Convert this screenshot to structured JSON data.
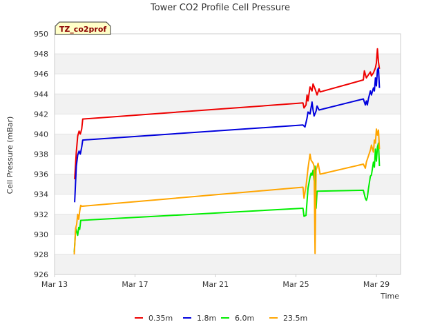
{
  "chart_data": {
    "type": "line",
    "title": "Tower CO2 Profile Cell Pressure",
    "badge": "TZ_co2prof",
    "xlabel": "Time",
    "ylabel": "Cell Pressure (mBar)",
    "x_unit": "day",
    "xlim": [
      13,
      30.2
    ],
    "ylim": [
      926,
      950
    ],
    "x_ticks": [
      {
        "value": 13,
        "label": "Mar 13"
      },
      {
        "value": 17,
        "label": "Mar 17"
      },
      {
        "value": 21,
        "label": "Mar 21"
      },
      {
        "value": 25,
        "label": "Mar 25"
      },
      {
        "value": 29,
        "label": "Mar 29"
      }
    ],
    "y_ticks": [
      926,
      928,
      930,
      932,
      934,
      936,
      938,
      940,
      942,
      944,
      946,
      948,
      950
    ],
    "grid": true,
    "banded_background": true,
    "legend_position": "bottom",
    "series": [
      {
        "name": "0.35m",
        "color": "#ee0000",
        "points": [
          [
            14.0,
            935.5
          ],
          [
            14.08,
            938.2
          ],
          [
            14.15,
            939.8
          ],
          [
            14.22,
            940.3
          ],
          [
            14.28,
            940.0
          ],
          [
            14.35,
            940.5
          ],
          [
            14.4,
            941.5
          ],
          [
            25.35,
            943.1
          ],
          [
            25.4,
            942.6
          ],
          [
            25.5,
            942.9
          ],
          [
            25.55,
            943.9
          ],
          [
            25.6,
            943.3
          ],
          [
            25.7,
            944.7
          ],
          [
            25.8,
            944.3
          ],
          [
            25.85,
            945.0
          ],
          [
            25.95,
            944.5
          ],
          [
            26.05,
            943.9
          ],
          [
            26.15,
            944.5
          ],
          [
            26.2,
            944.2
          ],
          [
            28.35,
            945.4
          ],
          [
            28.4,
            946.3
          ],
          [
            28.5,
            945.6
          ],
          [
            28.6,
            945.9
          ],
          [
            28.7,
            946.2
          ],
          [
            28.75,
            945.8
          ],
          [
            28.85,
            946.1
          ],
          [
            28.95,
            946.6
          ],
          [
            29.0,
            947.1
          ],
          [
            29.05,
            948.5
          ],
          [
            29.1,
            947.2
          ],
          [
            29.15,
            946.5
          ]
        ]
      },
      {
        "name": "1.8m",
        "color": "#0000dd",
        "points": [
          [
            14.0,
            933.2
          ],
          [
            14.08,
            936.8
          ],
          [
            14.15,
            937.9
          ],
          [
            14.22,
            938.3
          ],
          [
            14.28,
            938.0
          ],
          [
            14.35,
            938.7
          ],
          [
            14.4,
            939.4
          ],
          [
            25.35,
            940.9
          ],
          [
            25.45,
            940.7
          ],
          [
            25.55,
            941.6
          ],
          [
            25.6,
            942.2
          ],
          [
            25.7,
            942.0
          ],
          [
            25.8,
            943.2
          ],
          [
            25.85,
            942.4
          ],
          [
            25.9,
            941.8
          ],
          [
            26.0,
            942.3
          ],
          [
            26.05,
            942.8
          ],
          [
            26.15,
            942.4
          ],
          [
            28.35,
            943.5
          ],
          [
            28.45,
            942.9
          ],
          [
            28.5,
            943.3
          ],
          [
            28.55,
            942.9
          ],
          [
            28.6,
            943.5
          ],
          [
            28.7,
            944.3
          ],
          [
            28.75,
            943.9
          ],
          [
            28.85,
            944.6
          ],
          [
            28.9,
            944.3
          ],
          [
            28.95,
            945.6
          ],
          [
            29.0,
            944.8
          ],
          [
            29.05,
            946.4
          ],
          [
            29.1,
            946.6
          ],
          [
            29.15,
            944.6
          ]
        ]
      },
      {
        "name": "6.0m",
        "color": "#00ee00",
        "points": [
          [
            13.98,
            928.2
          ],
          [
            14.05,
            930.6
          ],
          [
            14.1,
            930.3
          ],
          [
            14.15,
            929.9
          ],
          [
            14.2,
            930.7
          ],
          [
            14.25,
            930.5
          ],
          [
            14.3,
            931.4
          ],
          [
            14.35,
            931.4
          ],
          [
            25.35,
            932.6
          ],
          [
            25.4,
            931.8
          ],
          [
            25.5,
            931.9
          ],
          [
            25.55,
            933.3
          ],
          [
            25.6,
            934.6
          ],
          [
            25.7,
            935.7
          ],
          [
            25.75,
            936.1
          ],
          [
            25.8,
            935.9
          ],
          [
            25.85,
            936.4
          ],
          [
            25.9,
            935.4
          ],
          [
            25.95,
            936.8
          ],
          [
            26.0,
            932.6
          ],
          [
            26.05,
            934.3
          ],
          [
            28.35,
            934.4
          ],
          [
            28.45,
            933.6
          ],
          [
            28.5,
            933.4
          ],
          [
            28.55,
            933.7
          ],
          [
            28.6,
            934.5
          ],
          [
            28.7,
            935.8
          ],
          [
            28.75,
            935.9
          ],
          [
            28.85,
            937.2
          ],
          [
            28.9,
            936.7
          ],
          [
            28.95,
            938.5
          ],
          [
            29.0,
            937.3
          ],
          [
            29.05,
            938.7
          ],
          [
            29.1,
            939.1
          ],
          [
            29.15,
            936.8
          ]
        ]
      },
      {
        "name": "23.5m",
        "color": "#ffa500",
        "points": [
          [
            13.98,
            928.0
          ],
          [
            14.05,
            930.6
          ],
          [
            14.1,
            931.0
          ],
          [
            14.15,
            932.0
          ],
          [
            14.2,
            931.5
          ],
          [
            14.25,
            932.3
          ],
          [
            14.3,
            932.9
          ],
          [
            14.35,
            932.8
          ],
          [
            25.35,
            934.7
          ],
          [
            25.4,
            933.6
          ],
          [
            25.5,
            934.8
          ],
          [
            25.55,
            935.7
          ],
          [
            25.6,
            936.6
          ],
          [
            25.7,
            938.0
          ],
          [
            25.75,
            937.4
          ],
          [
            25.85,
            937.1
          ],
          [
            25.9,
            936.8
          ],
          [
            25.95,
            928.1
          ],
          [
            26.0,
            936.4
          ],
          [
            26.1,
            937.1
          ],
          [
            26.2,
            936.0
          ],
          [
            28.35,
            937.0
          ],
          [
            28.45,
            936.6
          ],
          [
            28.5,
            937.2
          ],
          [
            28.6,
            937.8
          ],
          [
            28.7,
            938.4
          ],
          [
            28.75,
            938.9
          ],
          [
            28.85,
            938.2
          ],
          [
            28.9,
            939.4
          ],
          [
            28.95,
            939.1
          ],
          [
            29.0,
            940.5
          ],
          [
            29.05,
            939.9
          ],
          [
            29.1,
            940.4
          ],
          [
            29.15,
            938.5
          ]
        ]
      }
    ]
  }
}
